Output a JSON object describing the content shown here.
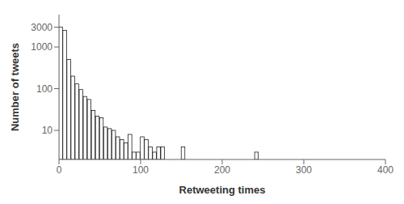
{
  "chart_data": {
    "type": "bar",
    "xlabel": "Retweeting times",
    "ylabel": "Number of tweets",
    "x": [
      0,
      5,
      10,
      15,
      20,
      25,
      30,
      35,
      40,
      45,
      50,
      55,
      60,
      65,
      70,
      75,
      80,
      85,
      90,
      95,
      100,
      105,
      110,
      115,
      120,
      125,
      130,
      150,
      240
    ],
    "values": [
      3000,
      2500,
      500,
      200,
      130,
      95,
      65,
      55,
      30,
      22,
      20,
      12,
      11,
      10,
      7,
      6,
      5,
      8,
      3,
      3,
      7,
      6,
      4,
      3,
      4,
      4,
      2,
      4,
      3
    ],
    "color": "white",
    "xlim": [
      0,
      400
    ],
    "ylim": [
      2,
      6000
    ],
    "xticks": [
      0,
      100,
      200,
      300,
      400
    ],
    "yticks": [
      10,
      100,
      1000,
      3000
    ],
    "log": "y"
  }
}
